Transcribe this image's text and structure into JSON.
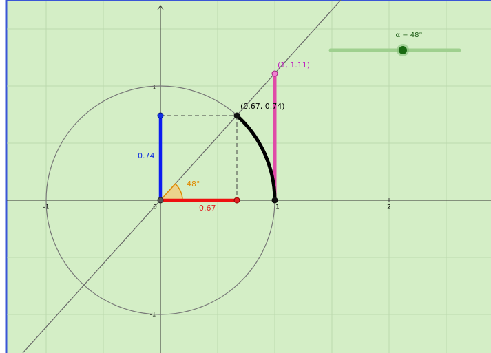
{
  "slider": {
    "label": "α = 48°"
  },
  "angle_label": "48°",
  "points": {
    "unit_point": "(0.67, 0.74)",
    "tangent_point": "(1, 1.11)"
  },
  "segments": {
    "sine": "0.74",
    "cosine": "0.67"
  },
  "axes": {
    "x_ticks": [
      "-1",
      "0",
      "1",
      "2"
    ],
    "y_ticks": [
      "1",
      "-1"
    ]
  }
}
